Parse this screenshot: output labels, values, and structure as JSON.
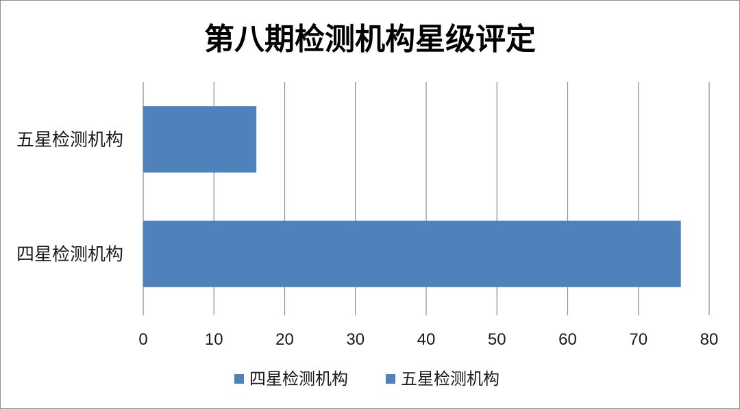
{
  "chart_data": {
    "type": "bar",
    "orientation": "horizontal",
    "title": "第八期检测机构星级评定",
    "categories": [
      "四星检测机构",
      "五星检测机构"
    ],
    "values": [
      76,
      16
    ],
    "xlim": [
      0,
      80
    ],
    "xticks": [
      0,
      10,
      20,
      30,
      40,
      50,
      60,
      70,
      80
    ],
    "grid": "vertical",
    "bar_color": "#4f81bd",
    "legend": {
      "placement": "bottom",
      "entries": [
        "四星检测机构",
        "五星检测机构"
      ]
    }
  }
}
